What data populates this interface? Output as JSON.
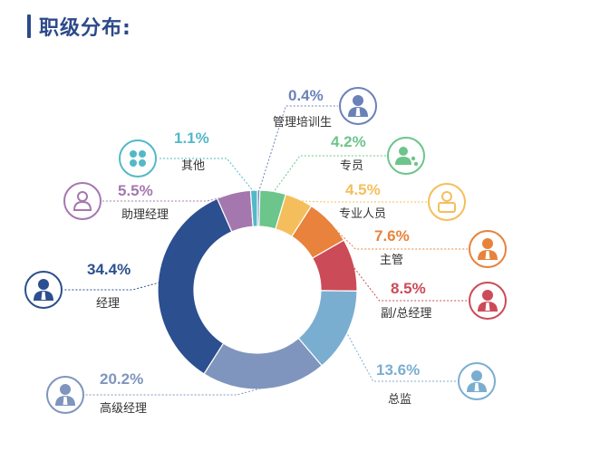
{
  "page": {
    "title": "职级分布:"
  },
  "colors": {
    "accent": "#2c4a8a"
  },
  "chart_data": {
    "type": "pie",
    "variant": "donut",
    "title": "职级分布:",
    "slices": [
      {
        "label": "管理培训生",
        "value": 0.4,
        "value_label": "0.4%",
        "color": "#6b82b8",
        "icon": "trainee-icon"
      },
      {
        "label": "专员",
        "value": 4.2,
        "value_label": "4.2%",
        "color": "#6cc58a",
        "icon": "team-icon"
      },
      {
        "label": "专业人员",
        "value": 4.5,
        "value_label": "4.5%",
        "color": "#f5be5c",
        "icon": "professional-icon"
      },
      {
        "label": "主管",
        "value": 7.6,
        "value_label": "7.6%",
        "color": "#e8823c",
        "icon": "supervisor-icon"
      },
      {
        "label": "副/总经理",
        "value": 8.5,
        "value_label": "8.5%",
        "color": "#cc4b58",
        "icon": "general-manager-icon"
      },
      {
        "label": "总监",
        "value": 13.6,
        "value_label": "13.6%",
        "color": "#7aaed0",
        "icon": "director-icon"
      },
      {
        "label": "高级经理",
        "value": 20.2,
        "value_label": "20.2%",
        "color": "#7f95bd",
        "icon": "senior-manager-icon"
      },
      {
        "label": "经理",
        "value": 34.4,
        "value_label": "34.4%",
        "color": "#2b4f8f",
        "icon": "manager-icon"
      },
      {
        "label": "助理经理",
        "value": 5.5,
        "value_label": "5.5%",
        "color": "#a478ae",
        "icon": "assistant-manager-icon"
      },
      {
        "label": "其他",
        "value": 1.1,
        "value_label": "1.1%",
        "color": "#52b9c8",
        "icon": "other-icon"
      }
    ]
  }
}
